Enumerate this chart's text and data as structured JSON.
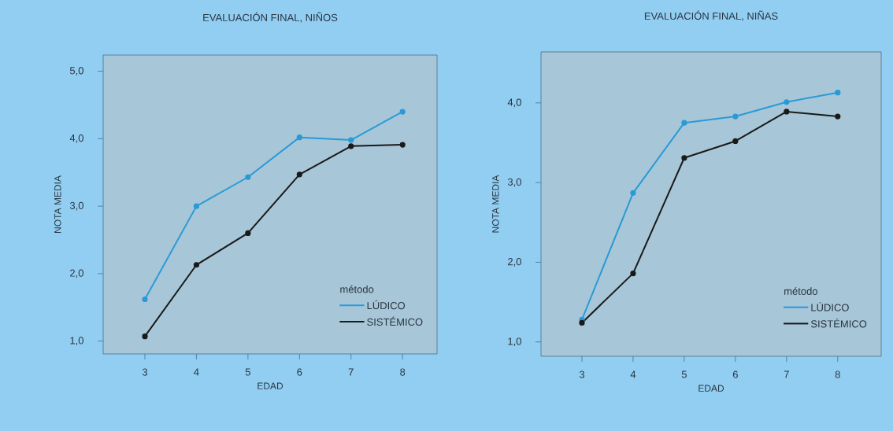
{
  "chart_data": [
    {
      "type": "line",
      "title": "EVALUACIÓN FINAL, NIÑOS",
      "xlabel": "EDAD",
      "ylabel": "NOTA MEDIA",
      "legend_title": "método",
      "legend": "bottom right",
      "marker": "circle",
      "grid": false,
      "x": [
        3,
        4,
        5,
        6,
        7,
        8
      ],
      "xlim": [
        2.19,
        8.67
      ],
      "xticks": [
        3,
        4,
        5,
        6,
        7,
        8
      ],
      "ylim": [
        0.81,
        5.24
      ],
      "yticks": [
        {
          "value": 1,
          "label": "1,0"
        },
        {
          "value": 2,
          "label": "2,0"
        },
        {
          "value": 3,
          "label": "3,0"
        },
        {
          "value": 4,
          "label": "4,0"
        },
        {
          "value": 5,
          "label": "5,0"
        }
      ],
      "series": [
        {
          "name": "LÚDICO",
          "color": "#2a9ad6",
          "values": [
            1.62,
            3.0,
            3.43,
            4.02,
            3.98,
            4.4
          ]
        },
        {
          "name": "SISTÉMICO",
          "color": "#1a1a1a",
          "values": [
            1.07,
            2.13,
            2.6,
            3.47,
            3.89,
            3.91
          ]
        }
      ]
    },
    {
      "type": "line",
      "title": "EVALUACIÓN FINAL, NIÑAS",
      "xlabel": "EDAD",
      "ylabel": "NOTA MEDIA",
      "legend_title": "método",
      "legend": "bottom right",
      "marker": "circle",
      "grid": false,
      "x": [
        3,
        4,
        5,
        6,
        7,
        8
      ],
      "xlim": [
        2.2,
        8.85
      ],
      "xticks": [
        3,
        4,
        5,
        6,
        7,
        8
      ],
      "ylim": [
        0.82,
        4.64
      ],
      "yticks": [
        {
          "value": 1,
          "label": "1,0"
        },
        {
          "value": 2,
          "label": "2,0"
        },
        {
          "value": 3,
          "label": "3,0"
        },
        {
          "value": 4,
          "label": "4,0"
        }
      ],
      "series": [
        {
          "name": "LÚDICO",
          "color": "#2a9ad6",
          "values": [
            1.28,
            2.87,
            3.75,
            3.83,
            4.01,
            4.13
          ]
        },
        {
          "name": "SISTÉMICO",
          "color": "#1a1a1a",
          "values": [
            1.24,
            1.86,
            3.31,
            3.52,
            3.89,
            3.83
          ]
        }
      ]
    }
  ]
}
